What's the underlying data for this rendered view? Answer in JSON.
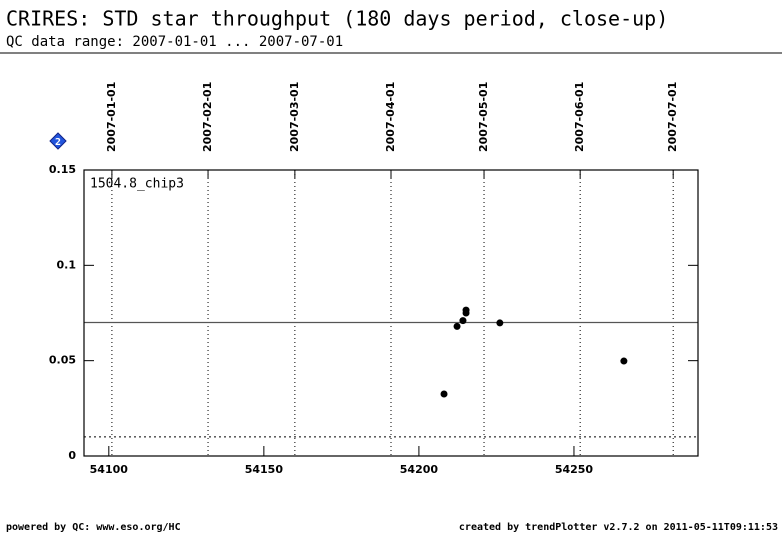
{
  "chart_data": {
    "type": "scatter",
    "title": "CRIRES: STD star throughput (180 days period, close-up)",
    "subtitle": "QC data range: 2007-01-01 ... 2007-07-01",
    "panel_label": "1504.8_chip3",
    "icon_label": "2",
    "footer_left": "powered by QC: www.eso.org/HC",
    "footer_right": "created by trendPlotter v2.7.2 on 2011-05-11T09:11:53",
    "x": [
      54208.1,
      54212.3,
      54214.2,
      54215.2,
      54215.2,
      54226.1,
      54266.1
    ],
    "series": [
      {
        "name": "1504.8_chip3",
        "color": "#000000",
        "values": [
          0.0325,
          0.068,
          0.071,
          0.0765,
          0.075,
          0.0698,
          0.0498
        ]
      }
    ],
    "reference_line": 0.07,
    "threshold_line": 0.01,
    "date_lines": [
      {
        "value": 54101,
        "label": "2007-01-01"
      },
      {
        "value": 54132,
        "label": "2007-02-01"
      },
      {
        "value": 54160,
        "label": "2007-03-01"
      },
      {
        "value": 54191,
        "label": "2007-04-01"
      },
      {
        "value": 54221,
        "label": "2007-05-01"
      },
      {
        "value": 54252,
        "label": "2007-06-01"
      },
      {
        "value": 54282,
        "label": "2007-07-01"
      }
    ],
    "xlim": [
      54092,
      54290
    ],
    "xticks": [
      54100,
      54150,
      54200,
      54250
    ],
    "ylim": [
      0,
      0.15
    ],
    "yticks": [
      0,
      0.05,
      0.1,
      0.15
    ]
  }
}
